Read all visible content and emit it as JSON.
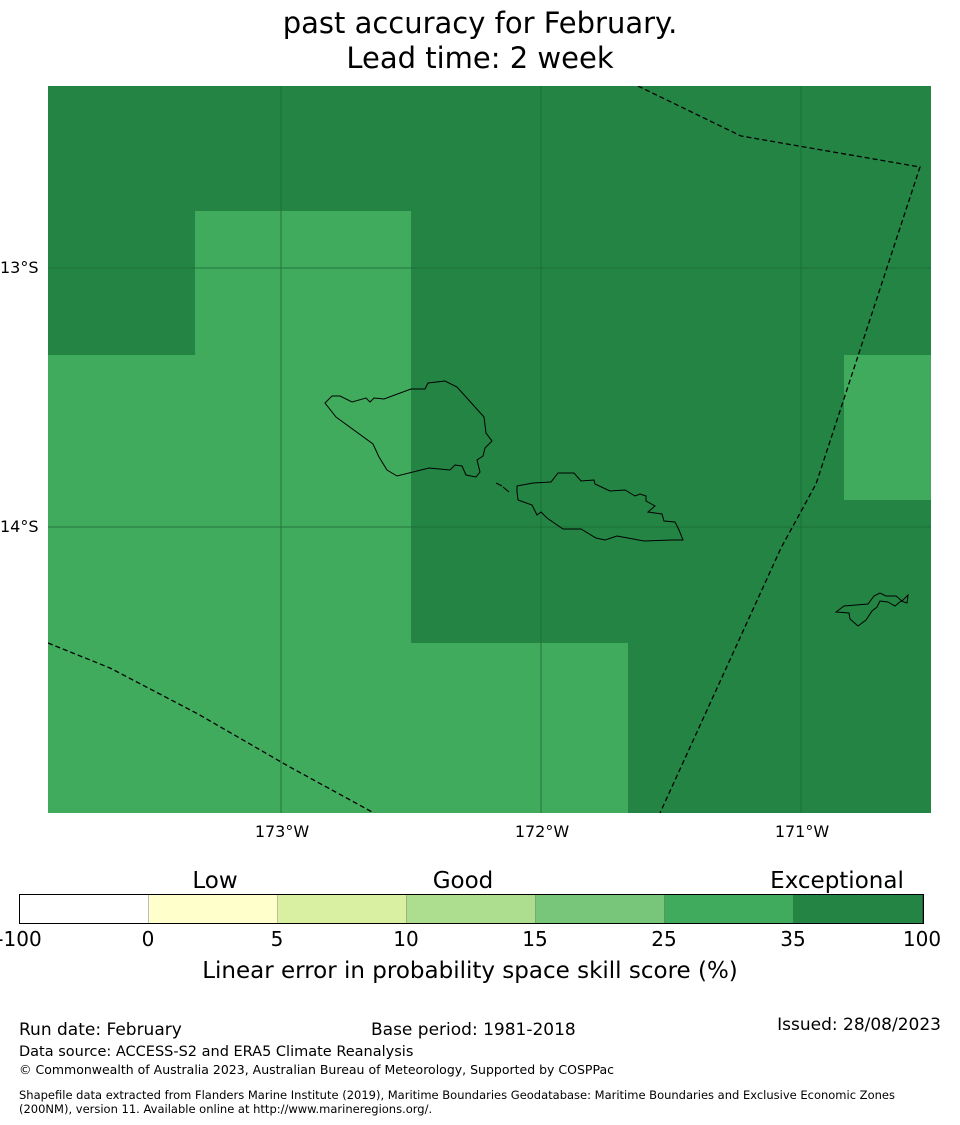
{
  "title": {
    "line2": "past accuracy for February.",
    "line3": "Lead time: 2 week"
  },
  "map": {
    "lat_labels": [
      "13°S",
      "14°S"
    ],
    "lon_labels": [
      "173°W",
      "172°W",
      "171°W"
    ],
    "colors": {
      "exceptional": "#238443",
      "very_good": "#41ab5d"
    }
  },
  "colorbar": {
    "category_labels": [
      "Low",
      "Good",
      "Exceptional"
    ],
    "ticks": [
      "-100",
      "0",
      "5",
      "10",
      "15",
      "25",
      "35",
      "100"
    ],
    "colors": [
      "#ffffff",
      "#ffffcc",
      "#d9f0a3",
      "#addd8e",
      "#78c679",
      "#41ab5d",
      "#238443"
    ],
    "label": "Linear error in probability space skill score (%)"
  },
  "footer": {
    "run_date": "Run date: February",
    "base_period": "Base period: 1981-2018",
    "issued": "Issued: 28/08/2023",
    "data_source": "Data source: ACCESS-S2 and ERA5 Climate Reanalysis",
    "copyright": "© Commonwealth of Australia 2023, Australian Bureau of Meteorology, Supported by COSPPac",
    "shapefile": "Shapefile data extracted from Flanders Marine Institute (2019), Maritime Boundaries Geodatabase: Maritime Boundaries and Exclusive Economic Zones (200NM), version 11. Available online at http://www.marineregions.org/."
  }
}
